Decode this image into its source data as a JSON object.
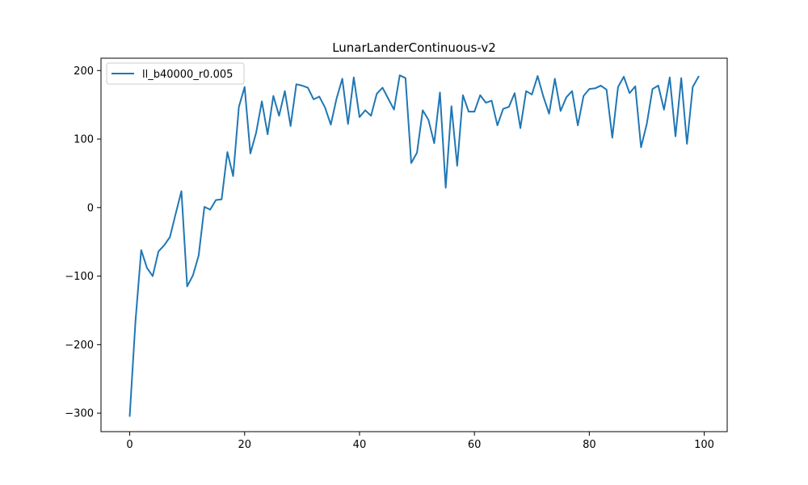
{
  "chart_data": {
    "type": "line",
    "title": "LunarLanderContinuous-v2",
    "xlabel": "",
    "ylabel": "",
    "xlim": [
      -5,
      104
    ],
    "ylim": [
      -327,
      218
    ],
    "x_ticks": [
      0,
      20,
      40,
      60,
      80,
      100
    ],
    "x_tick_labels": [
      "0",
      "20",
      "40",
      "60",
      "80",
      "100"
    ],
    "y_ticks": [
      -300,
      -200,
      -100,
      0,
      100,
      200
    ],
    "y_tick_labels": [
      "−300",
      "−200",
      "−100",
      "0",
      "100",
      "200"
    ],
    "grid": false,
    "legend_position": "top-left",
    "series": [
      {
        "name": "ll_b40000_r0.005",
        "color": "#1f77b4",
        "x": [
          0,
          1,
          2,
          3,
          4,
          5,
          6,
          7,
          8,
          9,
          10,
          11,
          12,
          13,
          14,
          15,
          16,
          17,
          18,
          19,
          20,
          21,
          22,
          23,
          24,
          25,
          26,
          27,
          28,
          29,
          30,
          31,
          32,
          33,
          34,
          35,
          36,
          37,
          38,
          39,
          40,
          41,
          42,
          43,
          44,
          45,
          46,
          47,
          48,
          49,
          50,
          51,
          52,
          53,
          54,
          55,
          56,
          57,
          58,
          59,
          60,
          61,
          62,
          63,
          64,
          65,
          66,
          67,
          68,
          69,
          70,
          71,
          72,
          73,
          74,
          75,
          76,
          77,
          78,
          79,
          80,
          81,
          82,
          83,
          84,
          85,
          86,
          87,
          88,
          89,
          90,
          91,
          92,
          93,
          94,
          95,
          96,
          97,
          98,
          99
        ],
        "values": [
          -304,
          -166,
          -62,
          -88,
          -100,
          -64,
          -55,
          -43,
          -9,
          24,
          -115,
          -99,
          -70,
          1,
          -3,
          11,
          12,
          81,
          46,
          147,
          176,
          79,
          109,
          155,
          107,
          163,
          134,
          170,
          119,
          180,
          178,
          175,
          158,
          162,
          146,
          121,
          159,
          188,
          122,
          190,
          132,
          142,
          134,
          166,
          175,
          159,
          143,
          193,
          189,
          65,
          80,
          142,
          128,
          94,
          168,
          29,
          148,
          61,
          164,
          140,
          140,
          164,
          153,
          156,
          120,
          144,
          147,
          167,
          116,
          170,
          165,
          192,
          162,
          137,
          188,
          141,
          161,
          170,
          120,
          163,
          173,
          174,
          178,
          172,
          102,
          176,
          191,
          167,
          177,
          88,
          122,
          173,
          178,
          143,
          190,
          104,
          189,
          93,
          176,
          191
        ]
      }
    ]
  }
}
